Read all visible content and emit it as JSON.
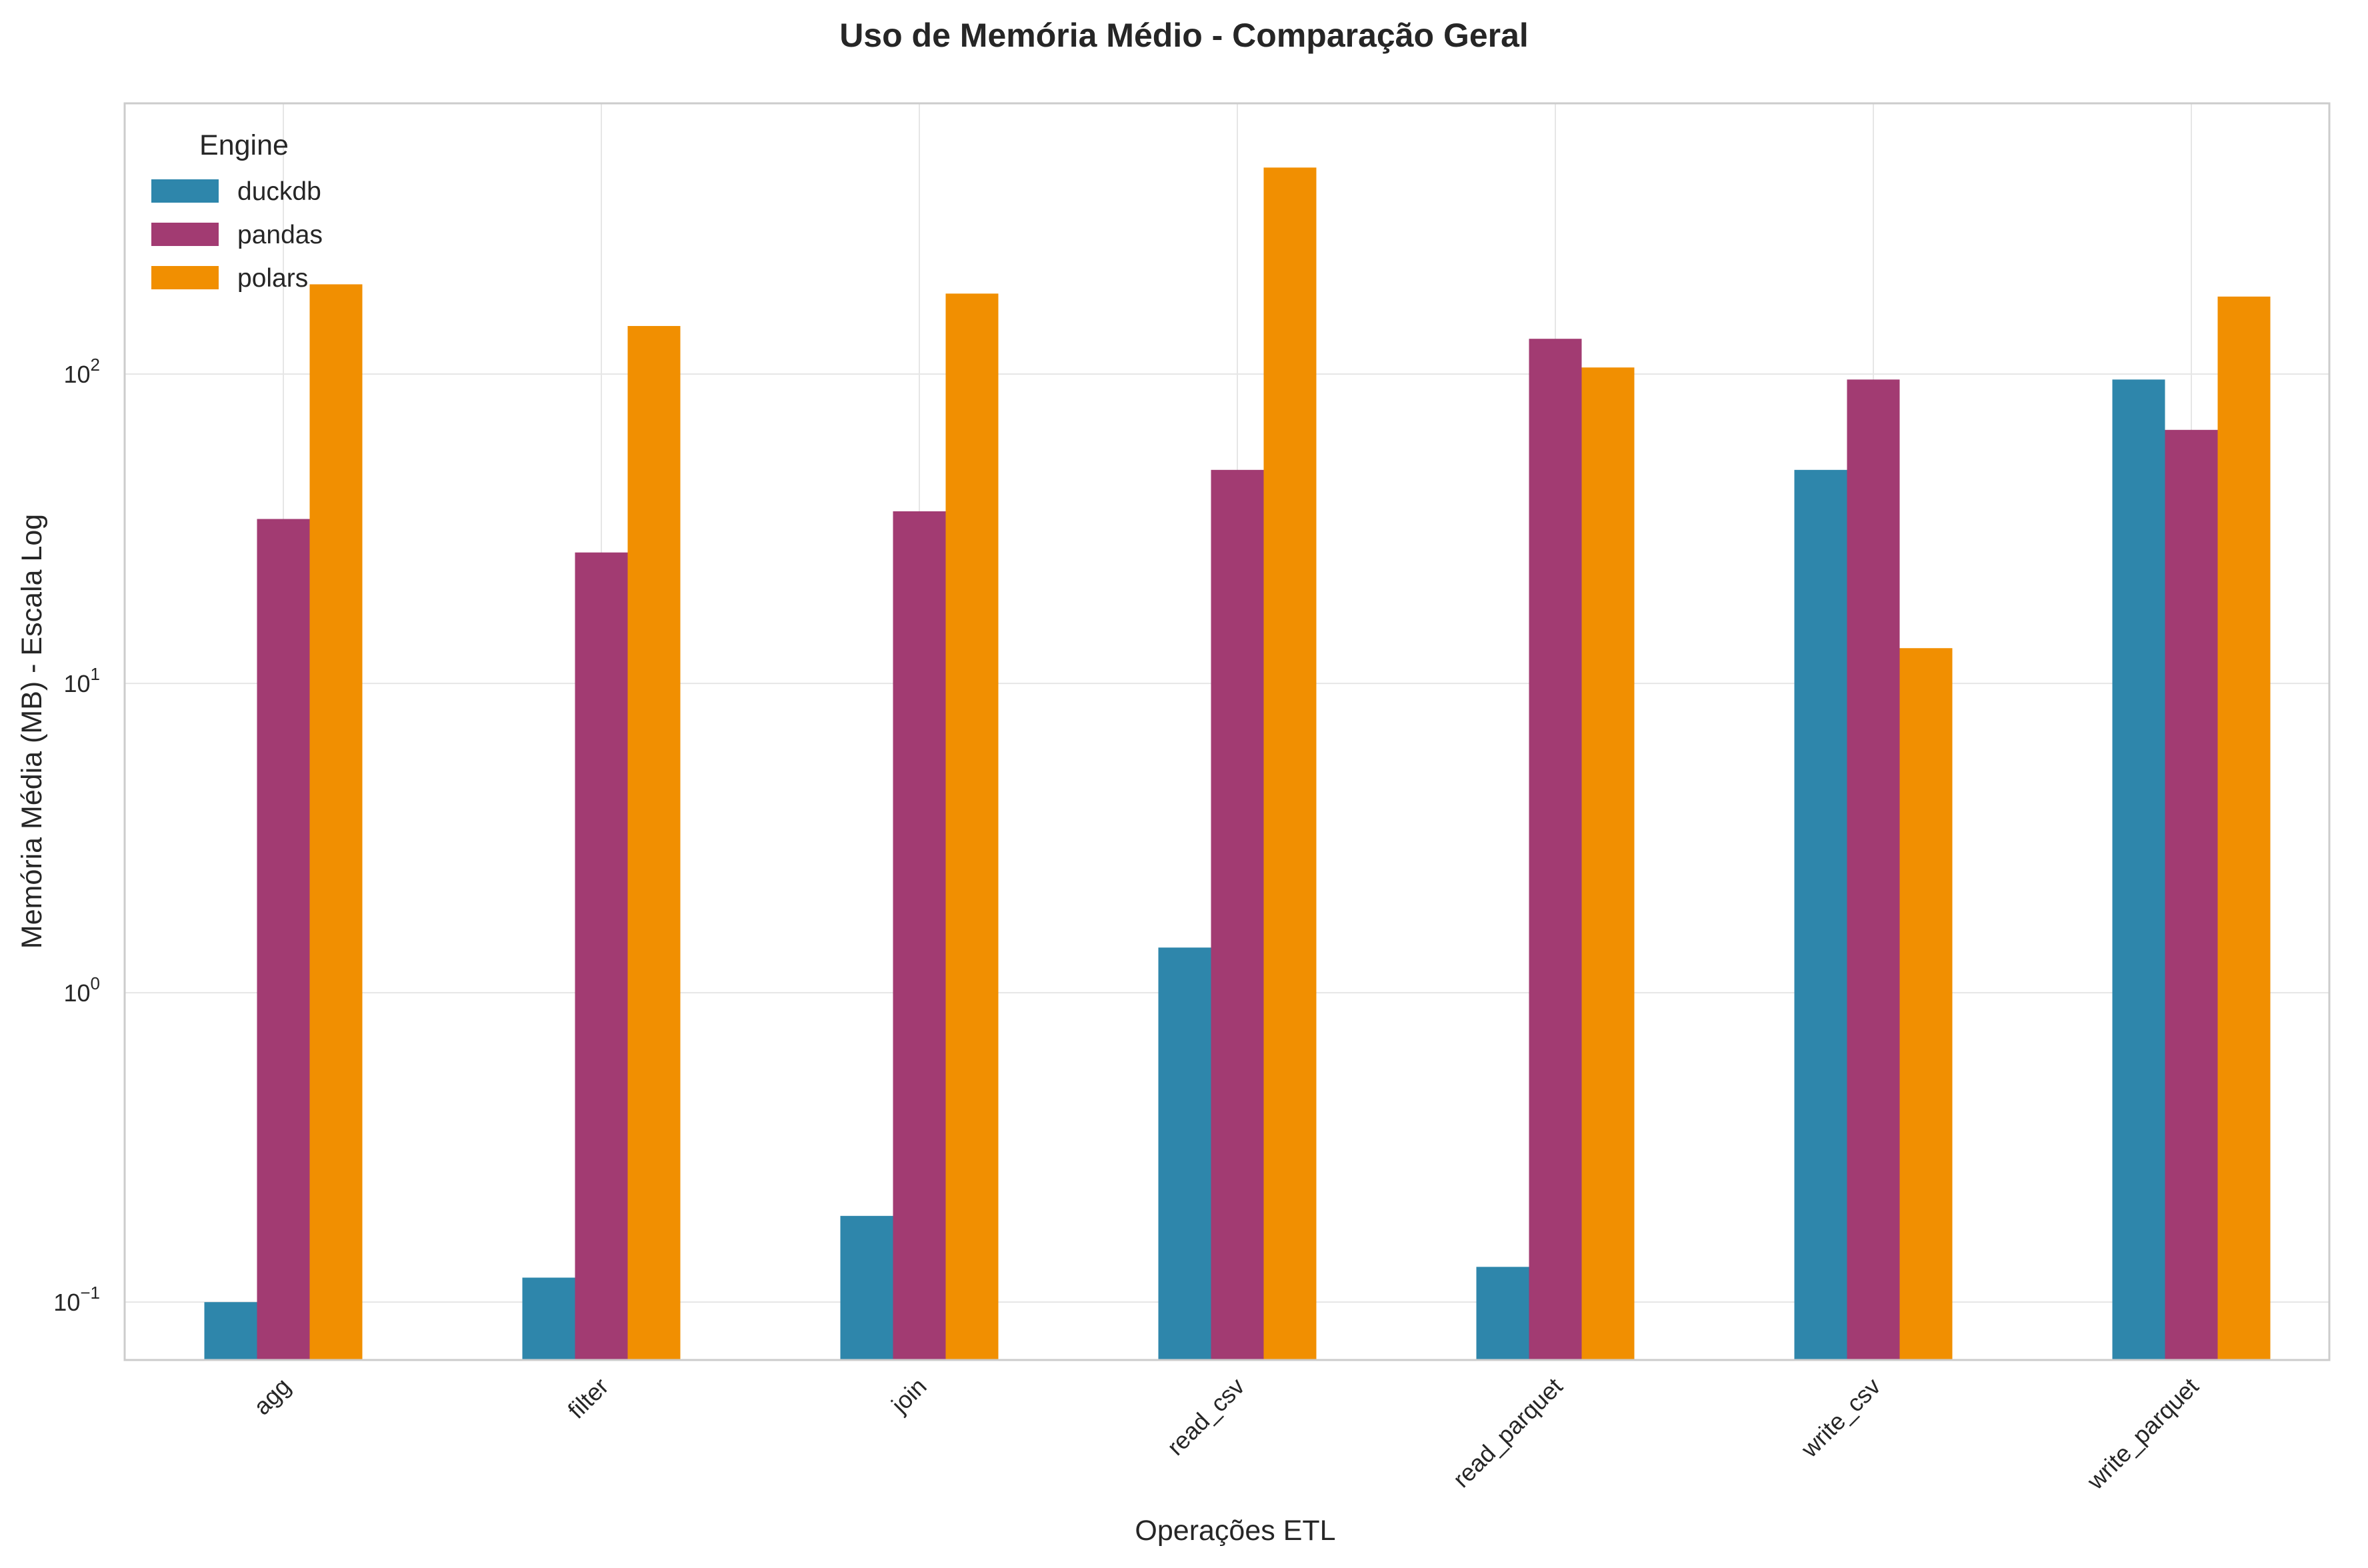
{
  "chart_data": {
    "type": "bar",
    "title": "Uso de Memória Médio - Comparação Geral",
    "xlabel": "Operações ETL",
    "ylabel": "Memória Média (MB) - Escala Log",
    "yscale": "log",
    "ylim": [
      0.065,
      750
    ],
    "yticks": [
      {
        "value": 0.1,
        "base": "10",
        "exp": "−1"
      },
      {
        "value": 1,
        "base": "10",
        "exp": "0"
      },
      {
        "value": 10,
        "base": "10",
        "exp": "1"
      },
      {
        "value": 100,
        "base": "10",
        "exp": "2"
      }
    ],
    "grid": true,
    "legend": {
      "title": "Engine",
      "placement": "top-left"
    },
    "categories": [
      "agg",
      "filter",
      "join",
      "read_csv",
      "read_parquet",
      "write_csv",
      "write_parquet"
    ],
    "series": [
      {
        "name": "duckdb",
        "color": "#2e86ab",
        "values": [
          0.1,
          0.12,
          0.19,
          1.4,
          0.13,
          49,
          96
        ]
      },
      {
        "name": "pandas",
        "color": "#a23b72",
        "values": [
          34,
          26.5,
          36,
          49,
          130,
          96,
          66
        ]
      },
      {
        "name": "polars",
        "color": "#f18f01",
        "values": [
          195,
          143,
          182,
          465,
          105,
          13,
          178
        ]
      }
    ]
  }
}
